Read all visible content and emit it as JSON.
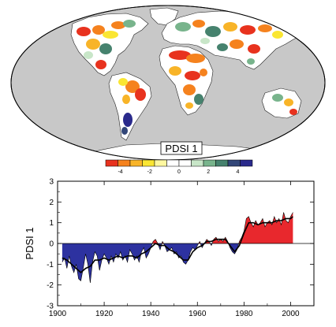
{
  "map_panel": {
    "title": "PDSI 1",
    "colorbar": {
      "tick_labels": [
        "-4",
        "-2",
        "0",
        "2",
        "4"
      ],
      "tick_values": [
        -4,
        -2,
        0,
        2,
        4
      ],
      "range": [
        -5,
        5
      ],
      "colors": [
        "#e8321e",
        "#f5821e",
        "#f8b428",
        "#fae632",
        "#fff8a0",
        "#ffffff",
        "#ffffff",
        "#c8e6c8",
        "#78b48c",
        "#46826e",
        "#324678",
        "#2a2a8c"
      ]
    },
    "land_color": "#ffffff",
    "ocean_color": "#c8c8c8"
  },
  "chart_data": {
    "type": "area",
    "title": "",
    "xlabel": "",
    "ylabel": "PDSI 1",
    "xlim": [
      1900,
      2010
    ],
    "ylim": [
      -3,
      3
    ],
    "x_ticks": [
      1900,
      1920,
      1940,
      1960,
      1980,
      2000
    ],
    "y_ticks": [
      -3,
      -2,
      -1,
      0,
      1,
      2,
      3
    ],
    "x_tick_labels": [
      "1900",
      "1920",
      "1940",
      "1960",
      "1980",
      "2000"
    ],
    "y_tick_labels": [
      "-3",
      "-2",
      "-1",
      "0",
      "1",
      "2",
      "3"
    ],
    "positive_color": "#e8282d",
    "negative_color": "#2d32a0",
    "grid": false,
    "series": [
      {
        "values": [
          [
            1902,
            -0.9
          ],
          [
            1903,
            -0.7
          ],
          [
            1904,
            -1.2
          ],
          [
            1905,
            -0.6
          ],
          [
            1906,
            -1.1
          ],
          [
            1907,
            -1.4
          ],
          [
            1908,
            -1.0
          ],
          [
            1909,
            -1.7
          ],
          [
            1910,
            -1.8
          ],
          [
            1911,
            -1.2
          ],
          [
            1912,
            -0.5
          ],
          [
            1913,
            -1.0
          ],
          [
            1914,
            -1.9
          ],
          [
            1915,
            -0.9
          ],
          [
            1916,
            -0.4
          ],
          [
            1917,
            -0.6
          ],
          [
            1918,
            -1.3
          ],
          [
            1919,
            -0.8
          ],
          [
            1920,
            -0.5
          ],
          [
            1921,
            -0.7
          ],
          [
            1922,
            -1.0
          ],
          [
            1923,
            -0.6
          ],
          [
            1924,
            -0.9
          ],
          [
            1925,
            -0.5
          ],
          [
            1926,
            -0.7
          ],
          [
            1927,
            -0.4
          ],
          [
            1928,
            -0.8
          ],
          [
            1929,
            -0.6
          ],
          [
            1930,
            -0.9
          ],
          [
            1931,
            -0.3
          ],
          [
            1932,
            -0.5
          ],
          [
            1933,
            -0.8
          ],
          [
            1934,
            -0.6
          ],
          [
            1935,
            -0.9
          ],
          [
            1936,
            -0.4
          ],
          [
            1937,
            -0.2
          ],
          [
            1938,
            -0.7
          ],
          [
            1939,
            -0.5
          ],
          [
            1940,
            -0.2
          ],
          [
            1941,
            0.1
          ],
          [
            1942,
            0.2
          ],
          [
            1943,
            0.0
          ],
          [
            1944,
            -0.3
          ],
          [
            1945,
            0.1
          ],
          [
            1946,
            -0.1
          ],
          [
            1947,
            -0.4
          ],
          [
            1948,
            -0.3
          ],
          [
            1949,
            -0.2
          ],
          [
            1950,
            -0.5
          ],
          [
            1951,
            -0.4
          ],
          [
            1952,
            -0.7
          ],
          [
            1953,
            -0.6
          ],
          [
            1954,
            -0.9
          ],
          [
            1955,
            -1.0
          ],
          [
            1956,
            -0.8
          ],
          [
            1957,
            -0.4
          ],
          [
            1958,
            -0.2
          ],
          [
            1959,
            -0.3
          ],
          [
            1960,
            -0.1
          ],
          [
            1961,
            0.1
          ],
          [
            1962,
            -0.2
          ],
          [
            1963,
            0.0
          ],
          [
            1964,
            0.2
          ],
          [
            1965,
            0.1
          ],
          [
            1966,
            -0.1
          ],
          [
            1967,
            0.2
          ],
          [
            1968,
            0.3
          ],
          [
            1969,
            0.1
          ],
          [
            1970,
            0.2
          ],
          [
            1971,
            0.1
          ],
          [
            1972,
            0.3
          ],
          [
            1973,
            0.1
          ],
          [
            1974,
            -0.2
          ],
          [
            1975,
            -0.4
          ],
          [
            1976,
            -0.5
          ],
          [
            1977,
            -0.3
          ],
          [
            1978,
            0.1
          ],
          [
            1979,
            0.3
          ],
          [
            1980,
            0.6
          ],
          [
            1981,
            1.2
          ],
          [
            1982,
            1.3
          ],
          [
            1983,
            1.0
          ],
          [
            1984,
            0.8
          ],
          [
            1985,
            1.1
          ],
          [
            1986,
            0.9
          ],
          [
            1987,
            1.0
          ],
          [
            1988,
            1.2
          ],
          [
            1989,
            0.8
          ],
          [
            1990,
            1.0
          ],
          [
            1991,
            1.1
          ],
          [
            1992,
            0.9
          ],
          [
            1993,
            1.3
          ],
          [
            1994,
            1.0
          ],
          [
            1995,
            1.2
          ],
          [
            1996,
            0.9
          ],
          [
            1997,
            1.5
          ],
          [
            1998,
            1.1
          ],
          [
            1999,
            1.0
          ],
          [
            2000,
            1.3
          ],
          [
            2001,
            1.5
          ]
        ]
      },
      {
        "values": [
          [
            1902,
            -0.7
          ],
          [
            1904,
            -0.8
          ],
          [
            1906,
            -1.0
          ],
          [
            1908,
            -1.2
          ],
          [
            1910,
            -1.4
          ],
          [
            1912,
            -1.2
          ],
          [
            1914,
            -1.1
          ],
          [
            1916,
            -0.8
          ],
          [
            1918,
            -0.8
          ],
          [
            1920,
            -0.7
          ],
          [
            1922,
            -0.8
          ],
          [
            1924,
            -0.7
          ],
          [
            1926,
            -0.6
          ],
          [
            1928,
            -0.7
          ],
          [
            1930,
            -0.6
          ],
          [
            1932,
            -0.6
          ],
          [
            1934,
            -0.7
          ],
          [
            1936,
            -0.5
          ],
          [
            1938,
            -0.4
          ],
          [
            1940,
            -0.2
          ],
          [
            1942,
            0.0
          ],
          [
            1944,
            -0.1
          ],
          [
            1946,
            -0.1
          ],
          [
            1948,
            -0.3
          ],
          [
            1950,
            -0.4
          ],
          [
            1952,
            -0.6
          ],
          [
            1954,
            -0.8
          ],
          [
            1956,
            -0.8
          ],
          [
            1958,
            -0.4
          ],
          [
            1960,
            -0.2
          ],
          [
            1962,
            -0.1
          ],
          [
            1964,
            0.1
          ],
          [
            1966,
            0.1
          ],
          [
            1968,
            0.2
          ],
          [
            1970,
            0.2
          ],
          [
            1972,
            0.2
          ],
          [
            1974,
            -0.1
          ],
          [
            1976,
            -0.4
          ],
          [
            1978,
            -0.1
          ],
          [
            1980,
            0.5
          ],
          [
            1982,
            1.0
          ],
          [
            1984,
            1.0
          ],
          [
            1986,
            0.9
          ],
          [
            1988,
            1.0
          ],
          [
            1990,
            1.0
          ],
          [
            1992,
            1.0
          ],
          [
            1994,
            1.1
          ],
          [
            1996,
            1.1
          ],
          [
            1998,
            1.2
          ],
          [
            2000,
            1.2
          ],
          [
            2001,
            1.3
          ]
        ]
      }
    ]
  }
}
